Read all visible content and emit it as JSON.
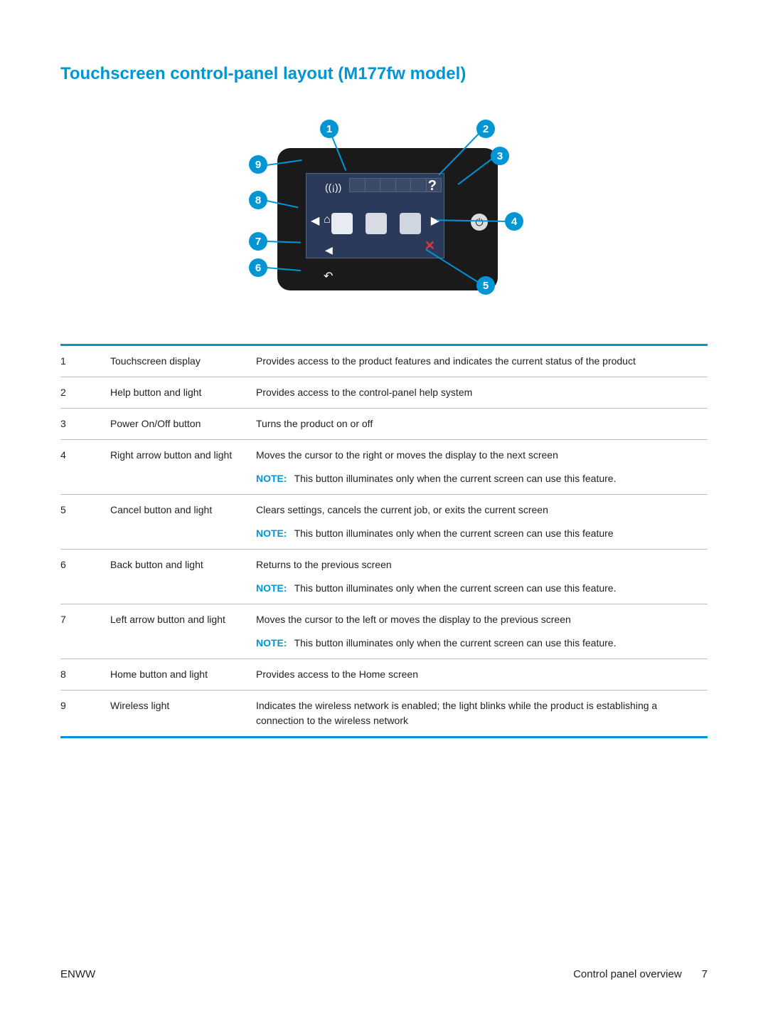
{
  "colors": {
    "accent": "#0096d6",
    "border": "#bfbfbf",
    "text": "#222222",
    "panel_bg": "#1a1a1a",
    "screen_bg": "#2b3a5a"
  },
  "heading": "Touchscreen control-panel layout (M177fw model)",
  "note_label": "NOTE:",
  "callouts": [
    "1",
    "2",
    "3",
    "4",
    "5",
    "6",
    "7",
    "8",
    "9"
  ],
  "rows": [
    {
      "num": "1",
      "name": "Touchscreen display",
      "desc": "Provides access to the product features and indicates the current status of the product",
      "note": null
    },
    {
      "num": "2",
      "name": "Help button and light",
      "desc": "Provides access to the control-panel help system",
      "note": null
    },
    {
      "num": "3",
      "name": "Power On/Off button",
      "desc": "Turns the product on or off",
      "note": null
    },
    {
      "num": "4",
      "name": "Right arrow button and light",
      "desc": "Moves the cursor to the right or moves the display to the next screen",
      "note": "This button illuminates only when the current screen can use this feature."
    },
    {
      "num": "5",
      "name": "Cancel button and light",
      "desc": "Clears settings, cancels the current job, or exits the current screen",
      "note": "This button illuminates only when the current screen can use this feature"
    },
    {
      "num": "6",
      "name": "Back button and light",
      "desc": "Returns to the previous screen",
      "note": "This button illuminates only when the current screen can use this feature."
    },
    {
      "num": "7",
      "name": "Left arrow button and light",
      "desc": "Moves the cursor to the left or moves the display to the previous screen",
      "note": "This button illuminates only when the current screen can use this feature."
    },
    {
      "num": "8",
      "name": "Home button and light",
      "desc": "Provides access to the Home screen",
      "note": null
    },
    {
      "num": "9",
      "name": "Wireless light",
      "desc": "Indicates the wireless network is enabled; the light blinks while the product is establishing a connection to the wireless network",
      "note": null
    }
  ],
  "footer": {
    "left": "ENWW",
    "section": "Control panel overview",
    "page": "7"
  }
}
